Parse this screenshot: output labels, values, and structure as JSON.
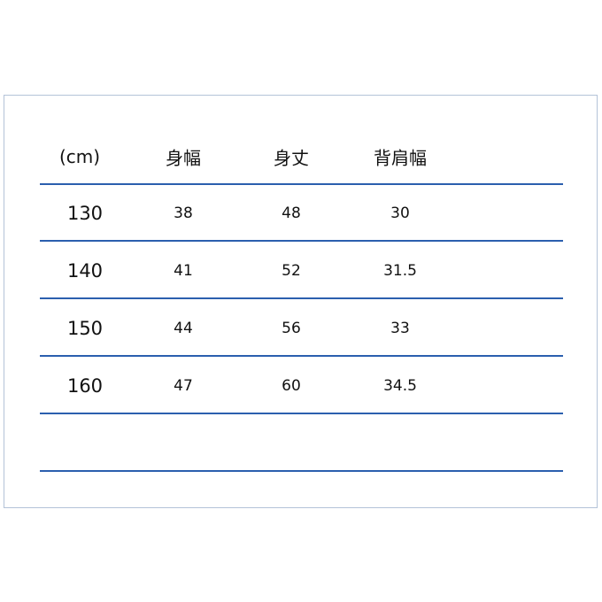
{
  "table": {
    "headers": [
      "(cm)",
      "身幅",
      "身丈",
      "背肩幅"
    ],
    "rows": [
      {
        "size": "130",
        "values": [
          "38",
          "48",
          "30"
        ]
      },
      {
        "size": "140",
        "values": [
          "41",
          "52",
          "31.5"
        ]
      },
      {
        "size": "150",
        "values": [
          "44",
          "56",
          "33"
        ]
      },
      {
        "size": "160",
        "values": [
          "47",
          "60",
          "34.5"
        ]
      }
    ]
  },
  "colors": {
    "rule": "#2b5fae",
    "frame": "#b4c3d8"
  }
}
